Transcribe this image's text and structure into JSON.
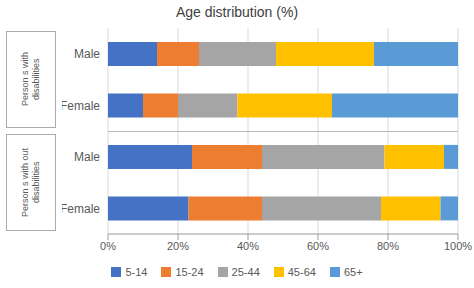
{
  "chart_data": {
    "type": "bar",
    "title": "Age distribution (%)",
    "orientation": "horizontal",
    "stacked": true,
    "grid": true,
    "legend": "bottom",
    "categories": [
      "Male",
      "Female",
      "Male",
      "Female"
    ],
    "group_labels": [
      "Person s with\ndisabilities",
      "Person s with out\ndisabilities"
    ],
    "series": [
      {
        "name": "5-14",
        "color": "#4472c4",
        "values": [
          14,
          10,
          24,
          23
        ]
      },
      {
        "name": "15-24",
        "color": "#ed7d31",
        "values": [
          12,
          10,
          20,
          21
        ]
      },
      {
        "name": "25-44",
        "color": "#a5a5a5",
        "values": [
          22,
          17,
          35,
          34
        ]
      },
      {
        "name": "45-64",
        "color": "#ffc000",
        "values": [
          28,
          27,
          17,
          17
        ]
      },
      {
        "name": "65+",
        "color": "#5b9bd5",
        "values": [
          24,
          36,
          4,
          5
        ]
      }
    ],
    "xlim": [
      0,
      100
    ],
    "xticks": [
      {
        "value": 0,
        "label": "0%"
      },
      {
        "value": 20,
        "label": "20%"
      },
      {
        "value": 40,
        "label": "40%"
      },
      {
        "value": 60,
        "label": "60%"
      },
      {
        "value": 80,
        "label": "80%"
      },
      {
        "value": 100,
        "label": "100%"
      }
    ]
  }
}
